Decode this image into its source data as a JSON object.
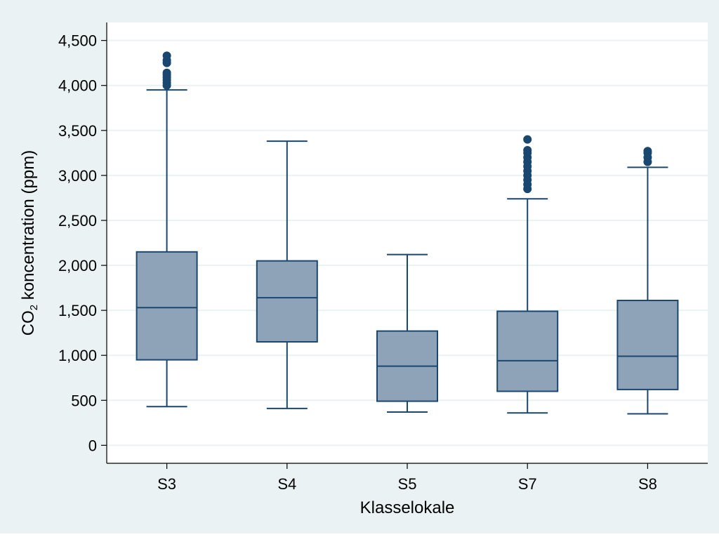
{
  "colors": {
    "outer_background": "#eaf2f3",
    "plot_background": "#ffffff",
    "box_fill": "#8ea2b8",
    "box_stroke": "#1a476f",
    "outlier": "#1a476f",
    "grid": "#eaf2f3",
    "axis": "#000000"
  },
  "chart_data": {
    "type": "box",
    "title": "",
    "xlabel": "Klasselokale",
    "ylabel_prefix": "CO",
    "ylabel_subscript": "2",
    "ylabel_suffix": " koncentration (ppm)",
    "ylim": [
      -200,
      4700
    ],
    "yticks": [
      0,
      500,
      1000,
      1500,
      2000,
      2500,
      3000,
      3500,
      4000,
      4500
    ],
    "ytick_labels": [
      "0",
      "500",
      "1,000",
      "1,500",
      "2,000",
      "2,500",
      "3,000",
      "3,500",
      "4,000",
      "4,500"
    ],
    "grid": true,
    "categories": [
      "S3",
      "S4",
      "S5",
      "S7",
      "S8"
    ],
    "boxes": [
      {
        "label": "S3",
        "whisker_low": 430,
        "q1": 950,
        "median": 1530,
        "q3": 2150,
        "whisker_high": 3950,
        "outliers": [
          4000,
          4030,
          4060,
          4090,
          4120,
          4140,
          4250,
          4280,
          4330
        ]
      },
      {
        "label": "S4",
        "whisker_low": 410,
        "q1": 1150,
        "median": 1640,
        "q3": 2050,
        "whisker_high": 3380,
        "outliers": []
      },
      {
        "label": "S5",
        "whisker_low": 370,
        "q1": 490,
        "median": 880,
        "q3": 1270,
        "whisker_high": 2120,
        "outliers": []
      },
      {
        "label": "S7",
        "whisker_low": 360,
        "q1": 600,
        "median": 940,
        "q3": 1490,
        "whisker_high": 2740,
        "outliers": [
          2850,
          2900,
          2950,
          3000,
          3050,
          3100,
          3150,
          3200,
          3250,
          3280,
          3400
        ]
      },
      {
        "label": "S8",
        "whisker_low": 350,
        "q1": 620,
        "median": 990,
        "q3": 1610,
        "whisker_high": 3090,
        "outliers": [
          3150,
          3200,
          3250,
          3270
        ]
      }
    ]
  }
}
